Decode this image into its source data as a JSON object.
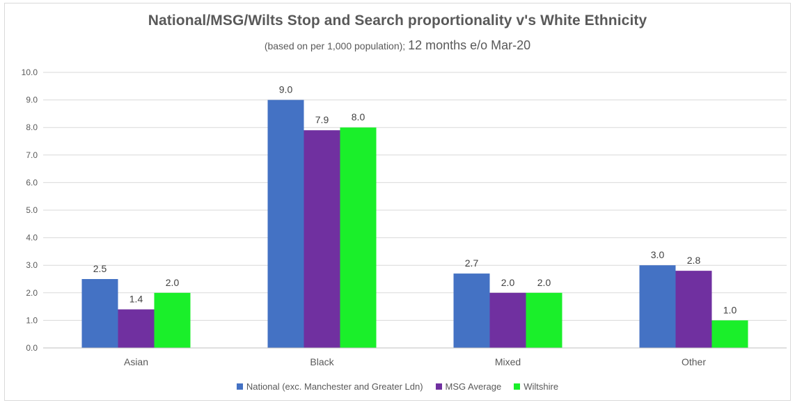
{
  "chart_data": {
    "type": "bar",
    "title": "National/MSG/Wilts  Stop and Search proportionality v's White Ethnicity",
    "subtitle_part1": "(based on per 1,000 population); ",
    "subtitle_part2": "12 months e/o Mar-20",
    "categories": [
      "Asian",
      "Black",
      "Mixed",
      "Other"
    ],
    "series": [
      {
        "name": "National (exc. Manchester and Greater Ldn)",
        "values": [
          2.5,
          9.0,
          2.7,
          3.0
        ],
        "labels": [
          "2.5",
          "9.0",
          "2.7",
          "3.0"
        ],
        "color": "#4472c4"
      },
      {
        "name": "MSG Average",
        "values": [
          1.4,
          7.9,
          2.0,
          2.8
        ],
        "labels": [
          "1.4",
          "7.9",
          "2.0",
          "2.8"
        ],
        "color": "#7030a0"
      },
      {
        "name": "Wiltshire",
        "values": [
          2.0,
          8.0,
          2.0,
          1.0
        ],
        "labels": [
          "2.0",
          "8.0",
          "2.0",
          "1.0"
        ],
        "color": "#1aef2a"
      }
    ],
    "yticks": [
      "0.0",
      "1.0",
      "2.0",
      "3.0",
      "4.0",
      "5.0",
      "6.0",
      "7.0",
      "8.0",
      "9.0",
      "10.0"
    ],
    "ylim": [
      0,
      10
    ],
    "grid": true,
    "legend_position": "bottom",
    "xlabel": "",
    "ylabel": ""
  }
}
